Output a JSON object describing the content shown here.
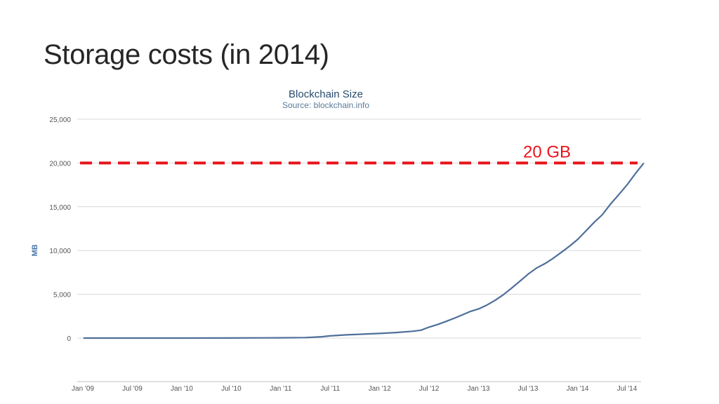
{
  "slide": {
    "title": "Storage costs (in 2014)"
  },
  "chart_data": {
    "type": "line",
    "title": "Blockchain Size",
    "subtitle": "Source: blockchain.info",
    "xlabel": "",
    "ylabel": "MB",
    "ylim": [
      0,
      25000
    ],
    "yticks": [
      0,
      5000,
      10000,
      15000,
      20000,
      25000
    ],
    "ytick_labels": [
      "0",
      "5,000",
      "10,000",
      "15,000",
      "20,000",
      "25,000"
    ],
    "xticks": [
      "Jan '09",
      "Jul '09",
      "Jan '10",
      "Jul '10",
      "Jan '11",
      "Jul '11",
      "Jan '12",
      "Jul '12",
      "Jan '13",
      "Jul '13",
      "Jan '14",
      "Jul '14"
    ],
    "grid": true,
    "legend": "none",
    "series": [
      {
        "color": "#4f6f9a",
        "points": [
          [
            "2009-01-03",
            0
          ],
          [
            "2009-07-01",
            0
          ],
          [
            "2010-01-01",
            0
          ],
          [
            "2010-07-01",
            5
          ],
          [
            "2011-01-01",
            30
          ],
          [
            "2011-04-01",
            60
          ],
          [
            "2011-06-01",
            150
          ],
          [
            "2011-07-01",
            250
          ],
          [
            "2011-09-01",
            370
          ],
          [
            "2011-11-01",
            450
          ],
          [
            "2012-01-01",
            530
          ],
          [
            "2012-03-01",
            630
          ],
          [
            "2012-05-01",
            780
          ],
          [
            "2012-06-01",
            900
          ],
          [
            "2012-07-01",
            1250
          ],
          [
            "2012-08-01",
            1550
          ],
          [
            "2012-09-01",
            1900
          ],
          [
            "2012-10-01",
            2250
          ],
          [
            "2012-11-01",
            2650
          ],
          [
            "2012-12-01",
            3050
          ],
          [
            "2013-01-01",
            3350
          ],
          [
            "2013-02-01",
            3800
          ],
          [
            "2013-03-01",
            4300
          ],
          [
            "2013-04-01",
            4950
          ],
          [
            "2013-05-01",
            5700
          ],
          [
            "2013-06-01",
            6500
          ],
          [
            "2013-07-01",
            7300
          ],
          [
            "2013-08-01",
            8000
          ],
          [
            "2013-09-01",
            8500
          ],
          [
            "2013-10-01",
            9100
          ],
          [
            "2013-11-01",
            9800
          ],
          [
            "2013-12-01",
            10500
          ],
          [
            "2014-01-01",
            11300
          ],
          [
            "2014-02-01",
            12300
          ],
          [
            "2014-03-01",
            13200
          ],
          [
            "2014-04-01",
            14100
          ],
          [
            "2014-05-01",
            15300
          ],
          [
            "2014-06-01",
            16400
          ],
          [
            "2014-07-01",
            17500
          ],
          [
            "2014-08-01",
            18800
          ],
          [
            "2014-09-01",
            20000
          ]
        ]
      }
    ],
    "annotations": [
      {
        "type": "dashed-hline",
        "y": 20000,
        "color": "#e8141b",
        "label": "20 GB"
      }
    ]
  }
}
